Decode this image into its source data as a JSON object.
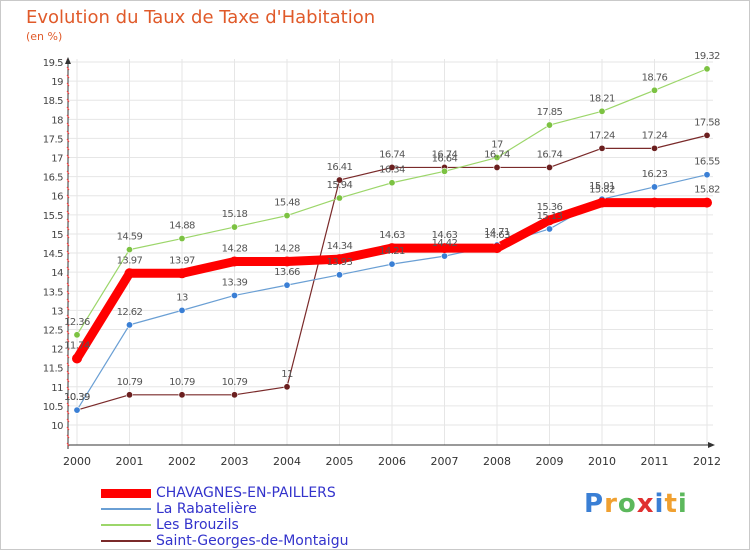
{
  "title": "Evolution du Taux de Taxe d'Habitation",
  "unit_label": "(en %)",
  "logo": {
    "text": "Proxiti",
    "letters": [
      "P",
      "r",
      "o",
      "x",
      "i",
      "t",
      "i"
    ],
    "letter_colors": [
      "#3a7fd5",
      "#f0a030",
      "#5cb85c",
      "#e03030",
      "#3a7fd5",
      "#f0a030",
      "#5cb85c"
    ]
  },
  "chart_data": {
    "type": "line",
    "x": [
      "2000",
      "2001",
      "2002",
      "2003",
      "2004",
      "2005",
      "2006",
      "2007",
      "2008",
      "2009",
      "2010",
      "2011",
      "2012"
    ],
    "ylim": [
      10,
      19.5
    ],
    "y_ticks": [
      "10",
      "10.5",
      "11",
      "11.5",
      "12",
      "12.5",
      "13",
      "13.5",
      "14",
      "14.5",
      "15",
      "15.5",
      "16",
      "16.5",
      "17",
      "17.5",
      "18",
      "18.5",
      "19",
      "19.5"
    ],
    "grid": true,
    "legend_position": "bottom-left",
    "series": [
      {
        "name": "CHAVAGNES-EN-PAILLERS",
        "color": "#ff0000",
        "marker_color": "#ff0000",
        "width": 9,
        "values": [
          11.74,
          13.97,
          13.97,
          14.28,
          14.28,
          14.34,
          14.63,
          14.63,
          14.63,
          15.36,
          15.82,
          15.82,
          15.82
        ],
        "labels": [
          "11.74",
          "13.97",
          "13.97",
          "14.28",
          "14.28",
          "14.34",
          "14.63",
          "14.63",
          "14.63",
          "15.36",
          "15.82",
          "",
          "15.82"
        ]
      },
      {
        "name": "La Rabatelière",
        "color": "#6a9fd4",
        "marker_color": "#3a7fd5",
        "width": 1.2,
        "values": [
          10.39,
          12.62,
          13.0,
          13.39,
          13.66,
          13.93,
          14.21,
          14.42,
          14.71,
          15.13,
          15.91,
          16.23,
          16.55
        ],
        "labels": [
          "10.39",
          "12.62",
          "13",
          "13.39",
          "13.66",
          "13.93",
          "14.21",
          "14.42",
          "14.71",
          "15.13",
          "15.91",
          "16.23",
          "16.55"
        ]
      },
      {
        "name": "Les Brouzils",
        "color": "#9cd66a",
        "marker_color": "#7cc242",
        "width": 1.2,
        "values": [
          12.36,
          14.59,
          14.88,
          15.18,
          15.48,
          15.94,
          16.34,
          16.64,
          17.0,
          17.85,
          18.21,
          18.76,
          19.32
        ],
        "labels": [
          "12.36",
          "14.59",
          "14.88",
          "15.18",
          "15.48",
          "15.94",
          "16.34",
          "16.64",
          "17",
          "17.85",
          "18.21",
          "18.76",
          "19.32"
        ]
      },
      {
        "name": "Saint-Georges-de-Montaigu",
        "color": "#7a2a2a",
        "marker_color": "#6b1f1f",
        "width": 1.2,
        "values": [
          10.39,
          10.79,
          10.79,
          10.79,
          11.0,
          16.41,
          16.74,
          16.74,
          16.74,
          16.74,
          17.24,
          17.24,
          17.58
        ],
        "labels": [
          "10.39",
          "10.79",
          "10.79",
          "10.79",
          "11",
          "16.41",
          "16.74",
          "16.74",
          "16.74",
          "16.74",
          "17.24",
          "17.24",
          "17.58"
        ]
      }
    ]
  }
}
